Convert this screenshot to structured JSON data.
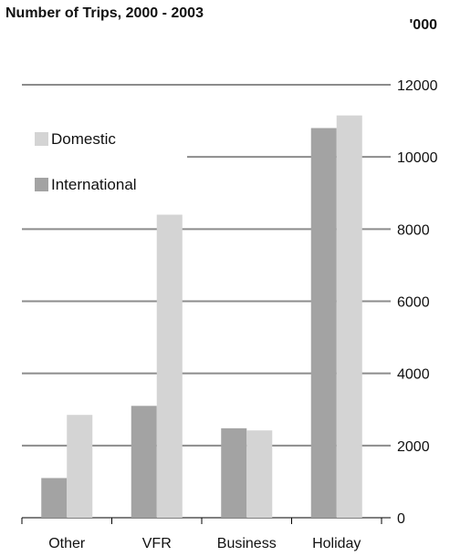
{
  "chart_data": {
    "type": "bar",
    "title": "Number of Trips, 2000 - 2003",
    "unit": "'000",
    "categories": [
      "Other",
      "VFR",
      "Business",
      "Holiday"
    ],
    "series": [
      {
        "name": "International",
        "values": [
          1100,
          3100,
          2480,
          10800
        ],
        "color": "#a3a3a3"
      },
      {
        "name": "Domestic",
        "values": [
          2850,
          8400,
          2420,
          11150
        ],
        "color": "#d4d4d4"
      }
    ],
    "legend_order": [
      "Domestic",
      "International"
    ],
    "ylim": [
      0,
      12000
    ],
    "y_ticks": [
      0,
      2000,
      4000,
      6000,
      8000,
      10000,
      12000
    ],
    "y_axis_position": "right",
    "grid": true,
    "legend_position": "top-left"
  }
}
